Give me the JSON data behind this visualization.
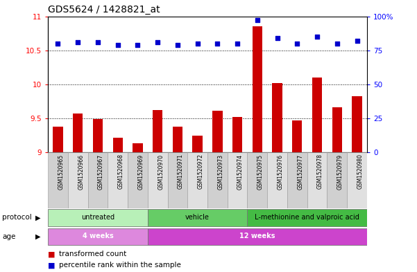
{
  "title": "GDS5624 / 1428821_at",
  "samples": [
    "GSM1520965",
    "GSM1520966",
    "GSM1520967",
    "GSM1520968",
    "GSM1520969",
    "GSM1520970",
    "GSM1520971",
    "GSM1520972",
    "GSM1520973",
    "GSM1520974",
    "GSM1520975",
    "GSM1520976",
    "GSM1520977",
    "GSM1520978",
    "GSM1520979",
    "GSM1520980"
  ],
  "bar_values": [
    9.38,
    9.57,
    9.49,
    9.21,
    9.13,
    9.62,
    9.38,
    9.25,
    9.61,
    9.52,
    10.85,
    10.02,
    9.47,
    10.1,
    9.66,
    9.83
  ],
  "dot_values": [
    80,
    81,
    81,
    79,
    79,
    81,
    79,
    80,
    80,
    80,
    97,
    84,
    80,
    85,
    80,
    82
  ],
  "ylim_left": [
    9,
    11
  ],
  "ylim_right": [
    0,
    100
  ],
  "yticks_left": [
    9,
    9.5,
    10,
    10.5,
    11
  ],
  "yticks_right": [
    0,
    25,
    50,
    75,
    100
  ],
  "bar_color": "#cc0000",
  "dot_color": "#0000cc",
  "bar_base": 9,
  "protocol_groups": [
    {
      "label": "untreated",
      "start": 0,
      "end": 4,
      "color": "#b8f0b8"
    },
    {
      "label": "vehicle",
      "start": 5,
      "end": 9,
      "color": "#66cc66"
    },
    {
      "label": "L-methionine and valproic acid",
      "start": 10,
      "end": 15,
      "color": "#44bb44"
    }
  ],
  "age_groups": [
    {
      "label": "4 weeks",
      "start": 0,
      "end": 4,
      "color": "#dd88dd"
    },
    {
      "label": "12 weeks",
      "start": 5,
      "end": 15,
      "color": "#cc44cc"
    }
  ],
  "legend_bar_label": "transformed count",
  "legend_dot_label": "percentile rank within the sample",
  "background_color": "#ffffff",
  "title_fontsize": 10,
  "tick_fontsize": 7.5,
  "annot_fontsize": 7.5
}
